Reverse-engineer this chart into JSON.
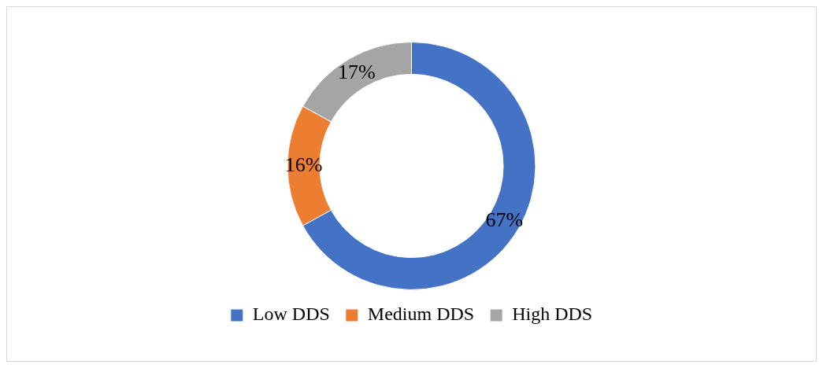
{
  "chart_data": {
    "type": "donut",
    "categories": [
      "Low DDS",
      "Medium DDS",
      "High DDS"
    ],
    "values": [
      67,
      16,
      17
    ],
    "colors": [
      "#4472c4",
      "#ed7d31",
      "#a5a5a5"
    ],
    "value_labels": [
      "67%",
      "16%",
      "17%"
    ],
    "legend": "bottom"
  }
}
